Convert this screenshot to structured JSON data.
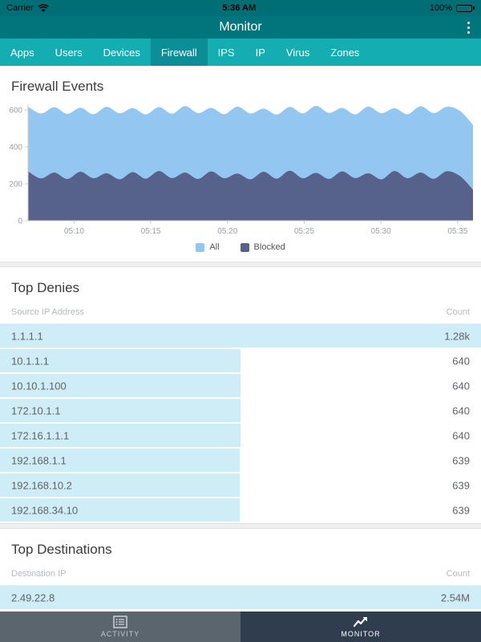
{
  "status_bar": {
    "carrier": "Carrier",
    "time": "5:36 AM",
    "battery": "100%"
  },
  "nav": {
    "title": "Monitor"
  },
  "tabs": {
    "items": [
      "Apps",
      "Users",
      "Devices",
      "Firewall",
      "IPS",
      "IP",
      "Virus",
      "Zones"
    ],
    "selected": "Firewall"
  },
  "colors": {
    "all_series": "#93c6f1",
    "blocked_series": "#56618c",
    "row_bar": "#cfedf6",
    "teal_dark": "#00757c",
    "teal_light": "#14aeb2"
  },
  "chart_data": {
    "type": "area",
    "title": "Firewall Events",
    "xlabel": "",
    "ylabel": "",
    "ylim": [
      0,
      650
    ],
    "yticks": [
      0,
      200,
      400,
      600
    ],
    "x_start_min": 7,
    "x_end_min": 36,
    "x_tick_minutes": [
      10,
      15,
      20,
      25,
      30,
      35
    ],
    "x_tick_labels": [
      "05:10",
      "05:15",
      "05:20",
      "05:25",
      "05:30",
      "05:35"
    ],
    "grid": false,
    "legend_position": "bottom",
    "series": [
      {
        "name": "All",
        "color": "#93c6f1",
        "values": [
          618,
          581,
          615,
          579,
          612,
          577,
          617,
          582,
          610,
          576,
          615,
          580,
          621,
          583,
          611,
          577,
          618,
          581,
          607,
          575,
          616,
          581,
          622,
          584,
          611,
          576,
          618,
          582,
          609,
          577,
          620,
          583,
          617,
          595,
          520
        ]
      },
      {
        "name": "Blocked",
        "color": "#56618c",
        "values": [
          267,
          229,
          261,
          226,
          265,
          230,
          257,
          224,
          263,
          228,
          269,
          231,
          261,
          226,
          267,
          230,
          255,
          224,
          265,
          228,
          271,
          230,
          259,
          226,
          267,
          231,
          257,
          224,
          269,
          230,
          261,
          227,
          268,
          242,
          168
        ]
      }
    ]
  },
  "top_denies": {
    "title": "Top Denies",
    "col_ip": "Source IP Address",
    "col_count": "Count",
    "rows": [
      {
        "ip": "1.1.1.1",
        "count": "1.28k",
        "bar_pct": 100
      },
      {
        "ip": "10.1.1.1",
        "count": "640",
        "bar_pct": 50
      },
      {
        "ip": "10.10.1.100",
        "count": "640",
        "bar_pct": 50
      },
      {
        "ip": "172.10.1.1",
        "count": "640",
        "bar_pct": 50
      },
      {
        "ip": "172.16.1.1.1",
        "count": "640",
        "bar_pct": 50
      },
      {
        "ip": "192.168.1.1",
        "count": "639",
        "bar_pct": 49.9
      },
      {
        "ip": "192.168.10.2",
        "count": "639",
        "bar_pct": 49.9
      },
      {
        "ip": "192.168.34.10",
        "count": "639",
        "bar_pct": 49.9
      }
    ]
  },
  "top_destinations": {
    "title": "Top Destinations",
    "col_ip": "Destination IP",
    "col_count": "Count",
    "rows": [
      {
        "ip": "2.49.22.8",
        "count": "2.54M",
        "bar_pct": 100
      }
    ]
  },
  "bottom_bar": {
    "items": [
      {
        "label": "ACTIVITY",
        "icon": "list-icon",
        "selected": false
      },
      {
        "label": "MONITOR",
        "icon": "trend-icon",
        "selected": true
      }
    ]
  }
}
